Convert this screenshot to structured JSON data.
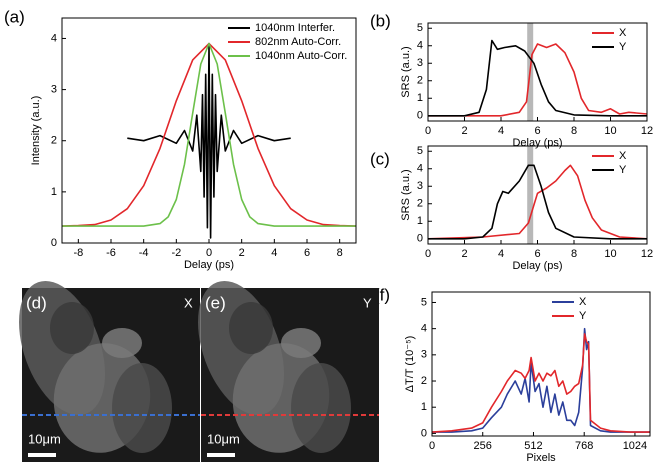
{
  "chart_data": [
    {
      "type": "line",
      "panel_label": "(a)",
      "xlabel": "Delay (ps)",
      "ylabel": "Intensity (a.u.)",
      "xlim": [
        -9,
        9
      ],
      "ylim": [
        0,
        4.4
      ],
      "xticks": [
        -8,
        -6,
        -4,
        -2,
        0,
        2,
        4,
        6,
        8
      ],
      "yticks": [
        0,
        1,
        2,
        3,
        4
      ],
      "legend": "top-right",
      "series": [
        {
          "name": "1040nm Interfer.",
          "color": "#000000",
          "x": [
            -5,
            -4,
            -3,
            -2,
            -1.5,
            -1,
            -0.75,
            -0.5,
            -0.4,
            -0.3,
            -0.2,
            -0.1,
            0,
            0.1,
            0.2,
            0.3,
            0.4,
            0.5,
            0.75,
            1,
            1.5,
            2,
            3,
            4,
            5
          ],
          "values": [
            2.05,
            2.0,
            2.1,
            1.95,
            2.2,
            1.8,
            2.5,
            1.4,
            2.9,
            0.9,
            3.3,
            0.3,
            3.9,
            0.1,
            3.3,
            0.9,
            2.9,
            1.4,
            2.5,
            1.8,
            2.2,
            1.95,
            2.1,
            2.0,
            2.05
          ]
        },
        {
          "name": "802nm Auto-Corr.",
          "color": "#e2272b",
          "x": [
            -9,
            -8,
            -7,
            -6,
            -5,
            -4,
            -3,
            -2,
            -1,
            0,
            1,
            2,
            3,
            4,
            5,
            6,
            7,
            8,
            9
          ],
          "values": [
            0.33,
            0.34,
            0.36,
            0.45,
            0.67,
            1.12,
            1.85,
            2.78,
            3.58,
            3.9,
            3.58,
            2.78,
            1.85,
            1.12,
            0.67,
            0.45,
            0.36,
            0.34,
            0.33
          ]
        },
        {
          "name": "1040nm Auto-Corr.",
          "color": "#6cc04a",
          "x": [
            -9,
            -6,
            -4,
            -3,
            -2.5,
            -2,
            -1.5,
            -1,
            -0.5,
            0,
            0.5,
            1,
            1.5,
            2,
            2.5,
            3,
            4,
            6,
            9
          ],
          "values": [
            0.33,
            0.33,
            0.33,
            0.38,
            0.51,
            0.85,
            1.54,
            2.54,
            3.5,
            3.9,
            3.5,
            2.54,
            1.54,
            0.85,
            0.51,
            0.38,
            0.33,
            0.33,
            0.33
          ]
        }
      ]
    },
    {
      "type": "line",
      "panel_label": "(b)",
      "xlabel": "Delay (ps)",
      "ylabel": "SRS (a.u.)",
      "xlim": [
        0,
        12
      ],
      "ylim": [
        -0.3,
        5.3
      ],
      "xticks": [
        0,
        2,
        4,
        6,
        8,
        10,
        12
      ],
      "yticks": [
        0,
        1,
        2,
        3,
        4,
        5
      ],
      "legend": "top-right",
      "highlight_x": 5.6,
      "highlight_color": "#b8b8b8",
      "series": [
        {
          "name": "X",
          "color": "#e2272b",
          "x": [
            0,
            4,
            5,
            5.4,
            5.7,
            6.0,
            6.5,
            7.0,
            7.5,
            8.0,
            8.4,
            8.8,
            9.5,
            10,
            10.5,
            11,
            12
          ],
          "values": [
            0,
            0,
            0.2,
            0.8,
            3.5,
            4.1,
            3.9,
            4.1,
            3.6,
            2.5,
            1.0,
            0.3,
            0.2,
            0.4,
            0.1,
            0.2,
            0.1
          ]
        },
        {
          "name": "Y",
          "color": "#000000",
          "x": [
            0,
            2,
            2.8,
            3.2,
            3.5,
            3.8,
            4.2,
            4.8,
            5.3,
            5.8,
            6.2,
            6.6,
            7,
            8,
            10,
            12
          ],
          "values": [
            0,
            0,
            0.2,
            1.5,
            4.3,
            3.8,
            3.9,
            4.0,
            3.7,
            3.0,
            1.8,
            0.8,
            0.3,
            0.05,
            0,
            0
          ]
        }
      ]
    },
    {
      "type": "line",
      "panel_label": "(c)",
      "xlabel": "Delay (ps)",
      "ylabel": "SRS (a.u.)",
      "xlim": [
        0,
        12
      ],
      "ylim": [
        -0.3,
        5.3
      ],
      "xticks": [
        0,
        2,
        4,
        6,
        8,
        10,
        12
      ],
      "yticks": [
        0,
        1,
        2,
        3,
        4,
        5
      ],
      "legend": "top-right",
      "highlight_x": 5.6,
      "highlight_color": "#b8b8b8",
      "series": [
        {
          "name": "X",
          "color": "#e2272b",
          "x": [
            0,
            3,
            5,
            5.5,
            6,
            6.5,
            7,
            7.5,
            7.8,
            8.2,
            8.6,
            9,
            9.5,
            10.5,
            12
          ],
          "values": [
            0,
            0.1,
            0.3,
            0.9,
            2.6,
            2.9,
            3.3,
            3.9,
            4.2,
            3.6,
            2.2,
            1.2,
            0.5,
            0.1,
            0
          ]
        },
        {
          "name": "Y",
          "color": "#000000",
          "x": [
            0,
            2,
            3,
            3.5,
            3.8,
            4.1,
            4.4,
            5,
            5.5,
            5.8,
            6.2,
            6.6,
            7,
            8,
            10,
            12
          ],
          "values": [
            0,
            0,
            0.1,
            0.6,
            2.0,
            2.7,
            2.6,
            3.3,
            4.2,
            4.2,
            3.0,
            1.5,
            0.6,
            0.1,
            0,
            0
          ]
        }
      ]
    },
    {
      "type": "line",
      "panel_label": "(f)",
      "xlabel": "Pixels",
      "ylabel": "ΔT/T (10⁻⁵)",
      "xlim": [
        0,
        1100
      ],
      "ylim": [
        -0.1,
        5.4
      ],
      "xticks": [
        0,
        256,
        512,
        768,
        1024
      ],
      "yticks": [
        0,
        1,
        2,
        3,
        4,
        5
      ],
      "legend": "top-right",
      "series": [
        {
          "name": "X",
          "color": "#2b3f9b",
          "x": [
            0,
            100,
            200,
            256,
            300,
            350,
            380,
            420,
            450,
            470,
            490,
            500,
            520,
            540,
            560,
            580,
            600,
            620,
            640,
            660,
            680,
            700,
            720,
            740,
            760,
            770,
            780,
            790,
            800,
            850,
            900,
            1000,
            1100
          ],
          "values": [
            0.05,
            0.05,
            0.1,
            0.2,
            0.6,
            1.0,
            1.5,
            2.0,
            1.5,
            2.1,
            1.2,
            2.7,
            1.6,
            1.9,
            1.0,
            1.8,
            0.8,
            1.5,
            0.7,
            1.2,
            0.5,
            0.5,
            0.3,
            0.8,
            2.5,
            4.0,
            3.2,
            3.5,
            0.3,
            0.1,
            0.05,
            0.05,
            0.05
          ]
        },
        {
          "name": "Y",
          "color": "#e2272b",
          "x": [
            0,
            100,
            200,
            256,
            300,
            350,
            380,
            420,
            450,
            470,
            490,
            500,
            520,
            540,
            560,
            580,
            600,
            620,
            640,
            660,
            680,
            700,
            720,
            740,
            760,
            770,
            780,
            790,
            800,
            850,
            900,
            1000,
            1100
          ],
          "values": [
            0.05,
            0.1,
            0.2,
            0.4,
            1.0,
            1.6,
            2.0,
            2.4,
            2.3,
            2.1,
            2.4,
            2.9,
            2.0,
            2.3,
            2.0,
            2.3,
            2.2,
            2.4,
            1.8,
            2.0,
            1.5,
            1.6,
            1.8,
            1.9,
            2.6,
            3.8,
            3.5,
            3.4,
            0.5,
            0.2,
            0.1,
            0.05,
            0.05
          ]
        }
      ]
    }
  ],
  "images": [
    {
      "panel_label": "(d)",
      "channel": "X",
      "scale_bar": "10μm",
      "line_color": "#3a6fd0"
    },
    {
      "panel_label": "(e)",
      "channel": "Y",
      "scale_bar": "10μm",
      "line_color": "#e03a3a"
    }
  ]
}
